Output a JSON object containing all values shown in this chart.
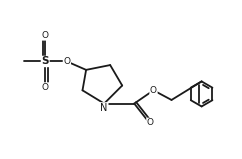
{
  "bg_color": "#ffffff",
  "line_color": "#1a1a1a",
  "line_width": 1.3,
  "font_size": 6.5,
  "fig_width": 2.42,
  "fig_height": 1.59,
  "dpi": 100,
  "xlim": [
    0.0,
    10.0
  ],
  "ylim": [
    0.5,
    5.5
  ]
}
